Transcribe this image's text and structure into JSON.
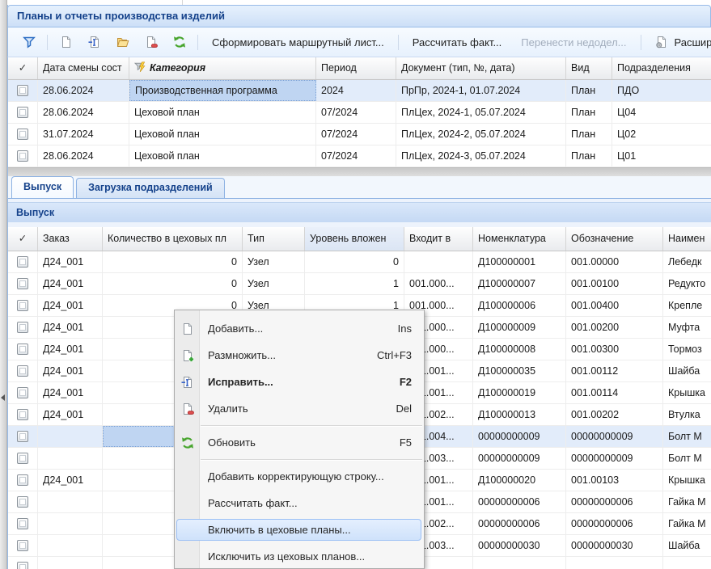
{
  "window": {
    "title": "Планы и отчеты производства изделий"
  },
  "toolbar": {
    "icons": [
      "filter-icon",
      "new-document-icon",
      "edit-document-icon",
      "open-folder-icon",
      "delete-document-icon",
      "refresh-icon"
    ],
    "actions": [
      {
        "label": "Сформировать маршрутный лист...",
        "enabled": true
      },
      {
        "label": "Рассчитать факт...",
        "enabled": true
      },
      {
        "label": "Перенести недодел...",
        "enabled": false
      },
      {
        "label": "Расширен",
        "enabled": true,
        "icon": "settings-document-icon"
      }
    ]
  },
  "plans_grid": {
    "headers": {
      "check": "✓",
      "date": "Дата смены сост",
      "category": "Категория",
      "period": "Период",
      "document": "Документ (тип, №, дата)",
      "kind": "Вид",
      "division": "Подразделения"
    },
    "rows": [
      {
        "date": "28.06.2024",
        "category": "Производственная программа",
        "period": "2024",
        "document": "ПрПр, 2024-1, 01.07.2024",
        "kind": "План",
        "division": "ПДО",
        "selected": true
      },
      {
        "date": "28.06.2024",
        "category": "Цеховой план",
        "period": "07/2024",
        "document": "ПлЦех, 2024-1, 05.07.2024",
        "kind": "План",
        "division": "Ц04"
      },
      {
        "date": "31.07.2024",
        "category": "Цеховой план",
        "period": "07/2024",
        "document": "ПлЦех, 2024-2, 05.07.2024",
        "kind": "План",
        "division": "Ц02"
      },
      {
        "date": "28.06.2024",
        "category": "Цеховой план",
        "period": "07/2024",
        "document": "ПлЦех, 2024-3, 05.07.2024",
        "kind": "План",
        "division": "Ц01"
      }
    ]
  },
  "tabs": [
    {
      "label": "Выпуск",
      "active": true
    },
    {
      "label": "Загрузка подразделений",
      "active": false
    }
  ],
  "section_title": "Выпуск",
  "output_grid": {
    "headers": {
      "check": "✓",
      "order": "Заказ",
      "qty": "Количество в цеховых пл",
      "type": "Тип",
      "level": "Уровень вложен",
      "parent": "Входит в",
      "nomenclature": "Номенклатура",
      "designation": "Обозначение",
      "name": "Наимен"
    },
    "rows": [
      {
        "order": "Д24_001",
        "qty": "0",
        "type": "Узел",
        "level": "0",
        "parent": "",
        "nomenclature": "Д100000001",
        "designation": "001.00000",
        "name": "Лебедк"
      },
      {
        "order": "Д24_001",
        "qty": "0",
        "type": "Узел",
        "level": "1",
        "parent": "001.000...",
        "nomenclature": "Д100000007",
        "designation": "001.00100",
        "name": "Редукто"
      },
      {
        "order": "Д24_001",
        "qty": "0",
        "type": "Узел",
        "level": "1",
        "parent": "001.000...",
        "nomenclature": "Д100000006",
        "designation": "001.00400",
        "name": "Крепле"
      },
      {
        "order": "Д24_001",
        "qty": "",
        "type": "",
        "level": "",
        "parent": "001.000...",
        "nomenclature": "Д100000009",
        "designation": "001.00200",
        "name": "Муфта"
      },
      {
        "order": "Д24_001",
        "qty": "",
        "type": "",
        "level": "",
        "parent": "001.000...",
        "nomenclature": "Д100000008",
        "designation": "001.00300",
        "name": "Тормоз"
      },
      {
        "order": "Д24_001",
        "qty": "",
        "type": "",
        "level": "",
        "parent": "001.001...",
        "nomenclature": "Д100000035",
        "designation": "001.00112",
        "name": "Шайба"
      },
      {
        "order": "Д24_001",
        "qty": "",
        "type": "",
        "level": "",
        "parent": "001.001...",
        "nomenclature": "Д100000019",
        "designation": "001.00114",
        "name": "Крышка"
      },
      {
        "order": "Д24_001",
        "qty": "",
        "type": "",
        "level": "",
        "parent": "001.002...",
        "nomenclature": "Д100000013",
        "designation": "001.00202",
        "name": "Втулка"
      },
      {
        "order": "",
        "qty": "",
        "type": "",
        "level": "",
        "parent": "001.004...",
        "nomenclature": "00000000009",
        "designation": "00000000009",
        "name": "Болт М",
        "selected": true
      },
      {
        "order": "",
        "qty": "",
        "type": "",
        "level": "",
        "parent": "001.003...",
        "nomenclature": "00000000009",
        "designation": "00000000009",
        "name": "Болт М"
      },
      {
        "order": "Д24_001",
        "qty": "",
        "type": "",
        "level": "",
        "parent": "001.001...",
        "nomenclature": "Д100000020",
        "designation": "001.00103",
        "name": "Крышка"
      },
      {
        "order": "",
        "qty": "",
        "type": "",
        "level": "",
        "parent": "001.001...",
        "nomenclature": "00000000006",
        "designation": "00000000006",
        "name": "Гайка М"
      },
      {
        "order": "",
        "qty": "",
        "type": "",
        "level": "",
        "parent": "001.002...",
        "nomenclature": "00000000006",
        "designation": "00000000006",
        "name": "Гайка М"
      },
      {
        "order": "",
        "qty": "",
        "type": "",
        "level": "",
        "parent": "001.003...",
        "nomenclature": "00000000030",
        "designation": "00000000030",
        "name": "Шайба"
      },
      {
        "order": "",
        "qty": "",
        "type": "",
        "level": "",
        "parent": "",
        "nomenclature": "",
        "designation": "",
        "name": ""
      }
    ]
  },
  "context_menu": {
    "items": [
      {
        "icon": "new-document-icon",
        "label": "Добавить...",
        "shortcut": "Ins"
      },
      {
        "icon": "duplicate-document-icon",
        "label": "Размножить...",
        "shortcut": "Ctrl+F3"
      },
      {
        "icon": "edit-document-icon",
        "label": "Исправить...",
        "shortcut": "F2",
        "bold": true
      },
      {
        "icon": "delete-document-icon",
        "label": "Удалить",
        "shortcut": "Del"
      },
      {
        "separator": true
      },
      {
        "icon": "refresh-icon",
        "label": "Обновить",
        "shortcut": "F5"
      },
      {
        "separator": true
      },
      {
        "label": "Добавить корректирующую строку..."
      },
      {
        "label": "Рассчитать факт..."
      },
      {
        "label": "Включить в цеховые планы...",
        "highlighted": true
      },
      {
        "label": "Исключить из цеховых планов..."
      }
    ]
  },
  "colors": {
    "accent": "#15428b",
    "selection_row": "#e2ecfa",
    "selection_cell": "#bfd5f2",
    "menu_highlight_border": "#9cc0f5"
  }
}
